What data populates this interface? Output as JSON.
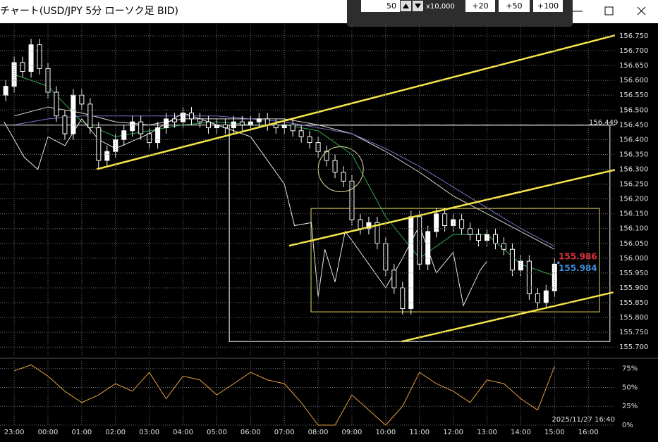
{
  "window": {
    "title": "チャート(USD/JPY 5分 ローソク足 BID)",
    "quantity": "50",
    "multiplier": "x10,000",
    "buttons": [
      "+20",
      "+50",
      "+100"
    ]
  },
  "chart_data": {
    "type": "candlestick",
    "xlim": [
      22.58,
      40.79
    ],
    "ylim": [
      155.672,
      156.788
    ],
    "xticks": [
      {
        "value": 23,
        "label": "23:00"
      },
      {
        "value": 24,
        "label": "00:00"
      },
      {
        "value": 25,
        "label": "01:00"
      },
      {
        "value": 26,
        "label": "02:00"
      },
      {
        "value": 27,
        "label": "03:00"
      },
      {
        "value": 28,
        "label": "04:00"
      },
      {
        "value": 29,
        "label": "05:00"
      },
      {
        "value": 30,
        "label": "06:00"
      },
      {
        "value": 31,
        "label": "07:00"
      },
      {
        "value": 32,
        "label": "08:00"
      },
      {
        "value": 33,
        "label": "09:00"
      },
      {
        "value": 34,
        "label": "10:00"
      },
      {
        "value": 35,
        "label": "11:00"
      },
      {
        "value": 36,
        "label": "12:00"
      },
      {
        "value": 37,
        "label": "13:00"
      },
      {
        "value": 38,
        "label": "14:00"
      },
      {
        "value": 39,
        "label": "15:00"
      },
      {
        "value": 40,
        "label": "16:00"
      }
    ],
    "yticks": [
      {
        "value": 156.75,
        "label": "156.750"
      },
      {
        "value": 156.7,
        "label": "156.700"
      },
      {
        "value": 156.65,
        "label": "156.650"
      },
      {
        "value": 156.6,
        "label": "156.600"
      },
      {
        "value": 156.55,
        "label": "156.550"
      },
      {
        "value": 156.5,
        "label": "156.500"
      },
      {
        "value": 156.45,
        "label": "156.450"
      },
      {
        "value": 156.4,
        "label": "156.400"
      },
      {
        "value": 156.35,
        "label": "156.350"
      },
      {
        "value": 156.3,
        "label": "156.300"
      },
      {
        "value": 156.25,
        "label": "156.250"
      },
      {
        "value": 156.2,
        "label": "156.200"
      },
      {
        "value": 156.15,
        "label": "156.150"
      },
      {
        "value": 156.1,
        "label": "156.100"
      },
      {
        "value": 156.05,
        "label": "156.050"
      },
      {
        "value": 156.0,
        "label": "156.000"
      },
      {
        "value": 155.95,
        "label": "155.950"
      },
      {
        "value": 155.9,
        "label": "155.900"
      },
      {
        "value": 155.85,
        "label": "155.850"
      },
      {
        "value": 155.8,
        "label": "155.800"
      },
      {
        "value": 155.75,
        "label": "155.750"
      },
      {
        "value": 155.7,
        "label": "155.700"
      }
    ],
    "grid": true,
    "candles": {
      "x": [
        22.75,
        23,
        23.25,
        23.5,
        23.75,
        24,
        24.25,
        24.5,
        24.75,
        25,
        25.25,
        25.5,
        25.75,
        26,
        26.25,
        26.5,
        26.75,
        27,
        27.25,
        27.5,
        27.75,
        28,
        28.25,
        28.5,
        28.75,
        29,
        29.25,
        29.5,
        29.75,
        30,
        30.25,
        30.5,
        30.75,
        31,
        31.25,
        31.5,
        31.75,
        32,
        32.25,
        32.5,
        32.75,
        33,
        33.25,
        33.5,
        33.75,
        34,
        34.25,
        34.5,
        34.75,
        35,
        35.25,
        35.5,
        35.75,
        36,
        36.25,
        36.5,
        36.75,
        37,
        37.25,
        37.5,
        37.75,
        38,
        38.25,
        38.5,
        38.75,
        39
      ],
      "open": [
        156.55,
        156.58,
        156.66,
        156.63,
        156.72,
        156.64,
        156.56,
        156.48,
        156.42,
        156.55,
        156.52,
        156.44,
        156.33,
        156.36,
        156.4,
        156.43,
        156.46,
        156.42,
        156.39,
        156.44,
        156.47,
        156.46,
        156.49,
        156.47,
        156.46,
        156.44,
        156.45,
        156.44,
        156.46,
        156.45,
        156.46,
        156.47,
        156.45,
        156.44,
        156.45,
        156.43,
        156.41,
        156.39,
        156.36,
        156.33,
        156.29,
        156.26,
        156.13,
        156.1,
        156.12,
        156.05,
        155.96,
        155.9,
        155.83,
        156.14,
        155.98,
        156.09,
        156.15,
        156.11,
        156.13,
        156.1,
        156.08,
        156.06,
        156.08,
        156.05,
        156.03,
        155.96,
        155.99,
        155.88,
        155.85,
        155.89
      ],
      "high": [
        156.6,
        156.68,
        156.68,
        156.74,
        156.74,
        156.66,
        156.58,
        156.5,
        156.57,
        156.57,
        156.54,
        156.46,
        156.38,
        156.42,
        156.45,
        156.48,
        156.48,
        156.44,
        156.46,
        156.49,
        156.49,
        156.51,
        156.51,
        156.49,
        156.48,
        156.47,
        156.47,
        156.48,
        156.48,
        156.48,
        156.49,
        156.49,
        156.47,
        156.47,
        156.47,
        156.45,
        156.43,
        156.41,
        156.38,
        156.35,
        156.31,
        156.28,
        156.15,
        156.14,
        156.14,
        156.07,
        155.98,
        155.92,
        156.16,
        156.16,
        156.11,
        156.17,
        156.17,
        156.15,
        156.15,
        156.12,
        156.1,
        156.1,
        156.1,
        156.07,
        156.05,
        156.01,
        156.01,
        155.9,
        155.91,
        156.0
      ],
      "low": [
        156.53,
        156.56,
        156.61,
        156.61,
        156.62,
        156.54,
        156.46,
        156.4,
        156.4,
        156.5,
        156.42,
        156.3,
        156.31,
        156.34,
        156.38,
        156.41,
        156.4,
        156.37,
        156.37,
        156.42,
        156.44,
        156.44,
        156.45,
        156.44,
        156.42,
        156.42,
        156.42,
        156.42,
        156.43,
        156.43,
        156.44,
        156.43,
        156.42,
        156.42,
        156.41,
        156.39,
        156.37,
        156.34,
        156.31,
        156.27,
        156.24,
        156.11,
        156.08,
        156.08,
        156.03,
        155.94,
        155.88,
        155.81,
        155.81,
        155.96,
        155.96,
        156.07,
        156.09,
        156.09,
        156.08,
        156.06,
        156.04,
        156.04,
        156.03,
        156.01,
        155.94,
        155.94,
        155.86,
        155.83,
        155.83,
        155.87
      ],
      "close": [
        156.58,
        156.66,
        156.63,
        156.72,
        156.64,
        156.56,
        156.48,
        156.42,
        156.55,
        156.52,
        156.44,
        156.33,
        156.36,
        156.4,
        156.43,
        156.46,
        156.42,
        156.39,
        156.44,
        156.47,
        156.46,
        156.49,
        156.47,
        156.46,
        156.44,
        156.45,
        156.44,
        156.46,
        156.45,
        156.46,
        156.47,
        156.45,
        156.44,
        156.45,
        156.43,
        156.41,
        156.39,
        156.36,
        156.33,
        156.29,
        156.26,
        156.13,
        156.1,
        156.12,
        156.05,
        155.96,
        155.9,
        155.83,
        156.14,
        155.98,
        156.09,
        156.15,
        156.11,
        156.13,
        156.1,
        156.08,
        156.06,
        156.08,
        156.05,
        156.03,
        155.96,
        155.99,
        155.88,
        155.85,
        155.89,
        155.98
      ],
      "up_color": "#ffffff",
      "down_color": "#000000",
      "edge_color": "#ffffff"
    },
    "lines": [
      {
        "color": "#2fa84f",
        "x": [
          23,
          24,
          25,
          26,
          27,
          28,
          29,
          30,
          31,
          32,
          33,
          34,
          35,
          36,
          37,
          38,
          39
        ],
        "values": [
          156.62,
          156.58,
          156.46,
          156.41,
          156.43,
          156.45,
          156.46,
          156.45,
          156.45,
          156.43,
          156.35,
          156.14,
          156.0,
          156.08,
          156.08,
          155.98,
          155.94
        ]
      },
      {
        "color": "#d8d8d8",
        "x": [
          23,
          24,
          25,
          26,
          27,
          28,
          29,
          30,
          31,
          32,
          33,
          34,
          35,
          36,
          37,
          38,
          39
        ],
        "values": [
          156.48,
          156.51,
          156.49,
          156.46,
          156.45,
          156.47,
          156.47,
          156.47,
          156.47,
          156.45,
          156.42,
          156.36,
          156.29,
          156.21,
          156.15,
          156.09,
          156.03
        ]
      },
      {
        "color": "#7a74c8",
        "x": [
          23,
          24,
          25,
          26,
          27,
          28,
          29,
          30,
          31,
          32,
          33,
          34,
          35,
          36,
          37,
          38,
          39
        ],
        "values": [
          156.45,
          156.47,
          156.48,
          156.48,
          156.48,
          156.48,
          156.48,
          156.47,
          156.46,
          156.44,
          156.42,
          156.37,
          156.31,
          156.24,
          156.17,
          156.1,
          156.04
        ]
      },
      {
        "color": "#e8e8e8",
        "x": [
          22.7,
          23.3,
          23.7,
          24,
          24.5,
          25,
          25.5,
          26,
          27,
          28,
          29,
          30,
          31,
          31.3,
          31.8,
          32.0,
          32.2,
          32.5,
          32.8,
          33,
          33.5,
          34,
          34.5,
          35,
          35.5,
          36,
          36.3,
          36.8,
          37.0
        ],
        "values": [
          156.46,
          156.34,
          156.3,
          156.41,
          156.38,
          156.47,
          156.4,
          156.37,
          156.42,
          156.49,
          156.45,
          156.41,
          156.25,
          156.11,
          156.12,
          155.87,
          156.03,
          155.92,
          156.09,
          156.06,
          155.98,
          155.9,
          156.0,
          156.11,
          155.95,
          156.02,
          155.84,
          155.96,
          155.99
        ]
      }
    ],
    "trendlines": [
      {
        "color": "#f5e44a",
        "x": [
          25.44,
          40.79
        ],
        "y": [
          156.3,
          156.752
        ]
      },
      {
        "color": "#f5e44a",
        "x": [
          31.14,
          40.79
        ],
        "y": [
          156.042,
          156.298
        ]
      },
      {
        "color": "#f5e44a",
        "x": [
          34.48,
          40.74
        ],
        "y": [
          155.719,
          155.885
        ]
      }
    ],
    "boxes": [
      {
        "color": "#ffffff",
        "x": [
          29.37,
          40.64
        ],
        "y": [
          155.719,
          156.449
        ]
      },
      {
        "color": "#e8d85a",
        "x": [
          31.79,
          40.33
        ],
        "y": [
          155.819,
          156.168
        ]
      }
    ],
    "circles": [
      {
        "color": "#e8e0a0",
        "x": 32.67,
        "y": 156.3
      }
    ],
    "hline": {
      "value": 156.449,
      "color": "#ffffff"
    },
    "price_labels": [
      {
        "value": 155.986,
        "color": "#e0303a"
      },
      {
        "value": 155.984,
        "color": "#3d8fe0"
      }
    ],
    "date_label": "2025/11/27 16:40",
    "oscillator": {
      "color": "#e8a040",
      "ylim": [
        0,
        85
      ],
      "yticks": [
        {
          "value": 0,
          "label": "0%"
        },
        {
          "value": 25,
          "label": "25%"
        },
        {
          "value": 50,
          "label": "50%"
        },
        {
          "value": 75,
          "label": "75%"
        }
      ],
      "x": [
        23,
        23.5,
        24,
        24.5,
        25,
        25.5,
        26,
        26.5,
        27,
        27.5,
        28,
        28.5,
        29,
        29.5,
        30,
        30.5,
        31,
        31.5,
        32,
        32.5,
        33,
        33.5,
        34,
        34.5,
        35,
        35.5,
        36,
        36.5,
        37,
        37.5,
        38,
        38.5,
        39
      ],
      "values": [
        72,
        80,
        65,
        45,
        30,
        40,
        55,
        45,
        70,
        35,
        65,
        60,
        40,
        55,
        70,
        60,
        55,
        30,
        0,
        0,
        40,
        20,
        0,
        25,
        70,
        55,
        45,
        30,
        60,
        55,
        35,
        20,
        78
      ]
    }
  }
}
